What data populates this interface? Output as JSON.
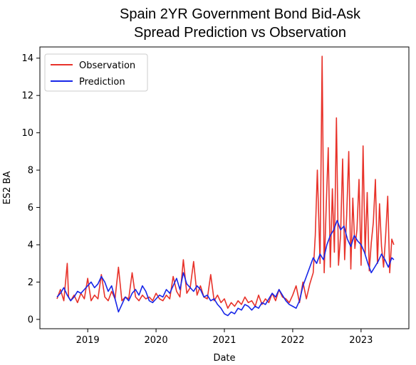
{
  "chart_data": {
    "type": "line",
    "title_line1": "Spain 2YR Government Bond Bid-Ask",
    "title_line2": "Spread Prediction vs Observation",
    "xlabel": "Date",
    "ylabel": "ES2 BA",
    "xlim": [
      2018.3,
      2023.7
    ],
    "ylim": [
      -0.5,
      14.6
    ],
    "x_ticks": [
      2019,
      2020,
      2021,
      2022,
      2023
    ],
    "x_tick_labels": [
      "2019",
      "2020",
      "2021",
      "2022",
      "2023"
    ],
    "y_ticks": [
      0,
      2,
      4,
      6,
      8,
      10,
      12,
      14
    ],
    "y_tick_labels": [
      "0",
      "2",
      "4",
      "6",
      "8",
      "10",
      "12",
      "14"
    ],
    "grid": false,
    "legend_position": "upper-left",
    "series": [
      {
        "name": "Observation",
        "color": "#e8322a",
        "x": [
          2018.55,
          2018.6,
          2018.65,
          2018.7,
          2018.72,
          2018.75,
          2018.8,
          2018.85,
          2018.9,
          2018.95,
          2019.0,
          2019.05,
          2019.1,
          2019.15,
          2019.2,
          2019.25,
          2019.3,
          2019.35,
          2019.4,
          2019.45,
          2019.5,
          2019.55,
          2019.6,
          2019.65,
          2019.7,
          2019.75,
          2019.8,
          2019.85,
          2019.9,
          2019.95,
          2020.0,
          2020.05,
          2020.1,
          2020.15,
          2020.2,
          2020.25,
          2020.3,
          2020.35,
          2020.4,
          2020.45,
          2020.5,
          2020.55,
          2020.6,
          2020.65,
          2020.7,
          2020.75,
          2020.8,
          2020.85,
          2020.9,
          2020.95,
          2021.0,
          2021.05,
          2021.1,
          2021.15,
          2021.2,
          2021.25,
          2021.3,
          2021.35,
          2021.4,
          2021.45,
          2021.5,
          2021.55,
          2021.6,
          2021.65,
          2021.7,
          2021.75,
          2021.8,
          2021.85,
          2021.9,
          2021.95,
          2022.0,
          2022.05,
          2022.1,
          2022.15,
          2022.2,
          2022.25,
          2022.3,
          2022.33,
          2022.36,
          2022.4,
          2022.43,
          2022.46,
          2022.49,
          2022.52,
          2022.55,
          2022.58,
          2022.61,
          2022.64,
          2022.67,
          2022.7,
          2022.73,
          2022.76,
          2022.79,
          2022.82,
          2022.85,
          2022.88,
          2022.91,
          2022.94,
          2022.97,
          2023.0,
          2023.03,
          2023.06,
          2023.09,
          2023.12,
          2023.15,
          2023.18,
          2023.21,
          2023.24,
          2023.27,
          2023.3,
          2023.33,
          2023.36,
          2023.39,
          2023.42,
          2023.45,
          2023.48
        ],
        "y": [
          1.1,
          1.6,
          1.0,
          3.0,
          1.2,
          1.0,
          1.3,
          0.9,
          1.4,
          1.1,
          2.2,
          1.0,
          1.3,
          1.1,
          2.4,
          1.2,
          1.0,
          1.5,
          1.1,
          2.8,
          1.0,
          1.2,
          1.1,
          2.5,
          1.2,
          1.0,
          1.3,
          1.1,
          1.2,
          1.0,
          1.4,
          1.1,
          1.0,
          1.3,
          1.1,
          2.3,
          1.5,
          1.2,
          3.2,
          1.4,
          1.7,
          3.1,
          1.3,
          1.8,
          1.2,
          1.1,
          2.4,
          1.0,
          1.3,
          0.9,
          1.1,
          0.6,
          0.9,
          0.7,
          1.0,
          0.8,
          1.2,
          0.9,
          1.0,
          0.7,
          1.3,
          0.8,
          1.1,
          0.9,
          1.4,
          1.0,
          1.6,
          1.2,
          1.1,
          0.9,
          1.3,
          1.8,
          0.9,
          2.0,
          1.1,
          1.9,
          2.5,
          4.5,
          8.0,
          3.0,
          14.1,
          2.5,
          6.0,
          9.2,
          2.8,
          7.0,
          3.6,
          10.8,
          2.9,
          4.5,
          8.6,
          3.2,
          5.6,
          9.0,
          2.7,
          6.5,
          3.8,
          4.8,
          7.5,
          2.9,
          9.3,
          3.5,
          6.8,
          2.6,
          4.1,
          5.2,
          7.5,
          3.0,
          6.2,
          3.9,
          2.8,
          4.5,
          6.6,
          2.5,
          4.3,
          4.0
        ]
      },
      {
        "name": "Prediction",
        "color": "#1726e8",
        "x": [
          2018.55,
          2018.6,
          2018.65,
          2018.7,
          2018.75,
          2018.8,
          2018.85,
          2018.9,
          2018.95,
          2019.0,
          2019.05,
          2019.1,
          2019.15,
          2019.2,
          2019.25,
          2019.3,
          2019.35,
          2019.4,
          2019.45,
          2019.5,
          2019.55,
          2019.6,
          2019.65,
          2019.7,
          2019.75,
          2019.8,
          2019.85,
          2019.9,
          2019.95,
          2020.0,
          2020.05,
          2020.1,
          2020.15,
          2020.2,
          2020.25,
          2020.3,
          2020.35,
          2020.4,
          2020.45,
          2020.5,
          2020.55,
          2020.6,
          2020.65,
          2020.7,
          2020.75,
          2020.8,
          2020.85,
          2020.9,
          2020.95,
          2021.0,
          2021.05,
          2021.1,
          2021.15,
          2021.2,
          2021.25,
          2021.3,
          2021.35,
          2021.4,
          2021.45,
          2021.5,
          2021.55,
          2021.6,
          2021.65,
          2021.7,
          2021.75,
          2021.8,
          2021.85,
          2021.9,
          2021.95,
          2022.0,
          2022.05,
          2022.1,
          2022.15,
          2022.2,
          2022.25,
          2022.3,
          2022.35,
          2022.4,
          2022.45,
          2022.5,
          2022.55,
          2022.6,
          2022.65,
          2022.7,
          2022.75,
          2022.8,
          2022.85,
          2022.9,
          2022.95,
          2023.0,
          2023.05,
          2023.1,
          2023.15,
          2023.2,
          2023.25,
          2023.3,
          2023.35,
          2023.4,
          2023.45,
          2023.48
        ],
        "y": [
          1.2,
          1.4,
          1.7,
          1.3,
          1.0,
          1.2,
          1.5,
          1.4,
          1.6,
          1.8,
          2.0,
          1.7,
          1.9,
          2.3,
          2.0,
          1.5,
          1.8,
          1.1,
          0.4,
          0.8,
          1.2,
          1.0,
          1.4,
          1.6,
          1.3,
          1.8,
          1.5,
          1.0,
          0.9,
          1.1,
          1.3,
          1.2,
          1.6,
          1.4,
          1.8,
          2.2,
          1.6,
          2.5,
          1.9,
          1.7,
          1.5,
          1.8,
          1.6,
          1.2,
          1.3,
          1.0,
          1.1,
          0.8,
          0.6,
          0.3,
          0.2,
          0.4,
          0.3,
          0.6,
          0.5,
          0.8,
          0.7,
          0.5,
          0.7,
          0.6,
          0.9,
          0.8,
          1.1,
          1.4,
          1.2,
          1.6,
          1.3,
          1.0,
          0.8,
          0.7,
          0.6,
          1.0,
          1.8,
          2.3,
          2.8,
          3.3,
          3.0,
          3.5,
          3.2,
          4.0,
          4.5,
          4.8,
          5.3,
          4.8,
          5.0,
          4.3,
          3.9,
          4.5,
          4.2,
          4.0,
          3.6,
          3.0,
          2.5,
          2.8,
          3.1,
          3.5,
          3.2,
          2.8,
          3.3,
          3.2
        ]
      }
    ]
  }
}
